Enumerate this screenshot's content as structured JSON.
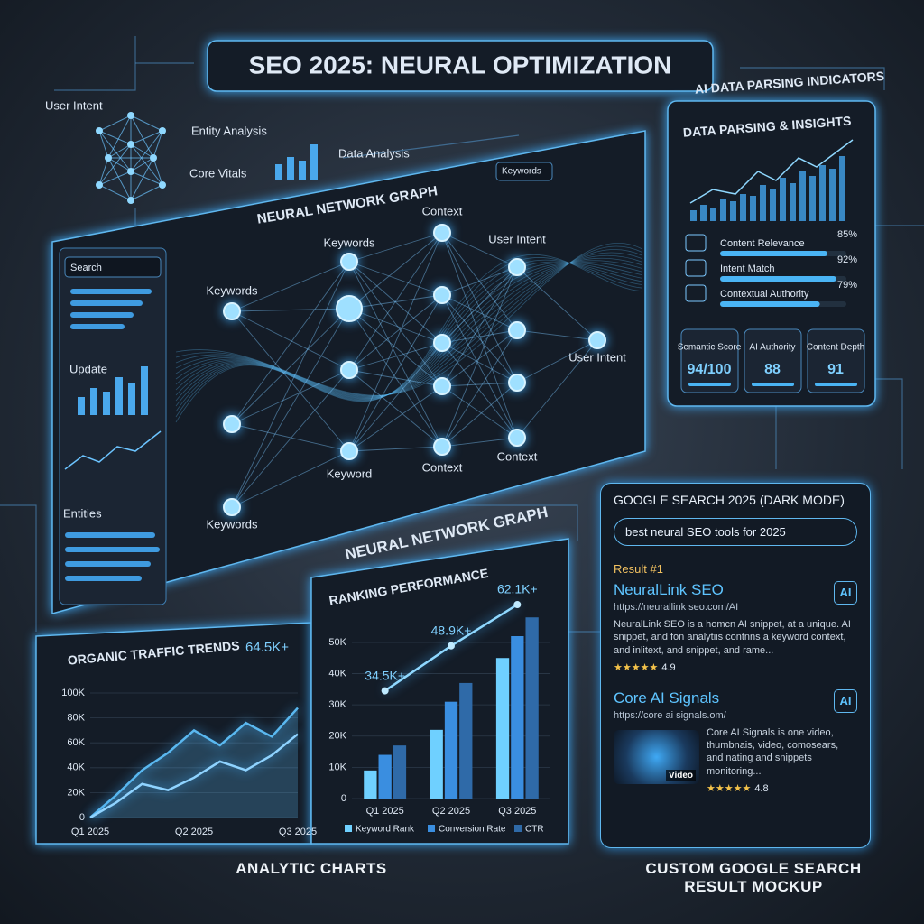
{
  "title": "SEO 2025: NEURAL OPTIMIZATION",
  "header_labels": {
    "user_intent": "User Intent",
    "entity_analysis": "Entity Analysis",
    "core_vitals": "Core Vitals",
    "data_analysis": "Data Analysis"
  },
  "neural_panel": {
    "title": "NEURAL NETWORK GRAPH",
    "dropdown": "Keywords",
    "sidebar": {
      "search": "Search",
      "update": "Update",
      "entities": "Entities"
    },
    "nodes": [
      "Keywords",
      "Keywords",
      "Context",
      "User Intent",
      "User Intent",
      "Keyword",
      "Context",
      "Context",
      "Keywords"
    ],
    "caption": "NEURAL NETWORK GRAPH"
  },
  "insights": {
    "header": "AI DATA PARSING INDICATORS",
    "title": "DATA PARSING & INSIGHTS",
    "metrics": [
      {
        "name": "Content Relevance",
        "value": 85,
        "label": "85%"
      },
      {
        "name": "Intent Match",
        "value": 92,
        "label": "92%"
      },
      {
        "name": "Contextual Authority",
        "value": 79,
        "label": "79%"
      }
    ],
    "scores": [
      {
        "name": "Semantic Score",
        "value": "94/100"
      },
      {
        "name": "AI Authority",
        "value": 88
      },
      {
        "name": "Content Depth",
        "value": 91
      }
    ]
  },
  "chart_data": [
    {
      "type": "line",
      "title": "ORGANIC TRAFFIC TRENDS",
      "annotation": "64.5K+",
      "categories": [
        "Q1 2025",
        null,
        null,
        null,
        "Q2 2025",
        null,
        null,
        null,
        "Q3 2025"
      ],
      "series": [
        {
          "color": "#5ab8f0",
          "values": [
            0,
            18000,
            38000,
            52000,
            70000,
            58000,
            76000,
            65000,
            88000
          ]
        },
        {
          "color": "#8fd3ff",
          "values": [
            0,
            12000,
            27000,
            22000,
            32000,
            45000,
            38000,
            50000,
            67000
          ]
        }
      ],
      "ylim": [
        0,
        100000
      ],
      "yticks": [
        0,
        {
          "value": 20000,
          "label": "20K"
        },
        {
          "value": 40000,
          "label": "40K"
        },
        {
          "value": 60000,
          "label": "60K"
        },
        {
          "value": 80000,
          "label": "80K"
        },
        {
          "value": 100000,
          "label": "100K"
        }
      ]
    },
    {
      "type": "bar",
      "title": "RANKING PERFORMANCE",
      "categories": [
        "Q1 2025",
        "Q2 2025",
        "Q3 2025"
      ],
      "series": [
        {
          "name": "Keyword Rank",
          "color": "#6fd0ff",
          "values": [
            9000,
            22000,
            45000
          ]
        },
        {
          "name": "Conversion Rate",
          "color": "#3a8ee0",
          "values": [
            14000,
            31000,
            52000
          ]
        },
        {
          "name": "CTR",
          "color": "#2f6aa8",
          "values": [
            17000,
            37000,
            58000
          ]
        }
      ],
      "trend": {
        "values": [
          34500,
          48900,
          62100
        ],
        "value_labels": [
          "34.5K+",
          "48.9K+",
          "62.1K+"
        ]
      },
      "ylim": [
        0,
        65000
      ],
      "yticks": [
        0,
        {
          "value": 10000,
          "label": "10K"
        },
        {
          "value": 20000,
          "label": "20K"
        },
        {
          "value": 30000,
          "label": "30K"
        },
        {
          "value": 40000,
          "label": "40K"
        },
        {
          "value": 50000,
          "label": "50K"
        }
      ]
    }
  ],
  "search": {
    "title": "GOOGLE SEARCH 2025 (DARK MODE)",
    "query": "best neural SEO tools for 2025",
    "result_heading": "Result #1",
    "results": [
      {
        "title": "NeuralLink SEO",
        "url": "https://neurallink seo.com/AI",
        "badge": "AI",
        "snippet": "NeuralLink SEO is a homcn AI snippet, at a unique. AI snippet, and fon analytiis contnns a keyword context, and inlitext, and snippet, and rame...",
        "stars": "★★★★★",
        "rating": 4.9
      },
      {
        "title": "Core AI Signals",
        "url": "https://core ai signals.om/",
        "badge": "AI",
        "media": "Video",
        "snippet": "Core AI Signals is one video, thumbnais, video, comosears, and nating and snippets monitoring...",
        "stars": "★★★★★",
        "rating": 4.8
      }
    ]
  },
  "captions": {
    "charts": "ANALYTIC CHARTS",
    "search": "CUSTOM GOOGLE SEARCH RESULT MOCKUP"
  }
}
